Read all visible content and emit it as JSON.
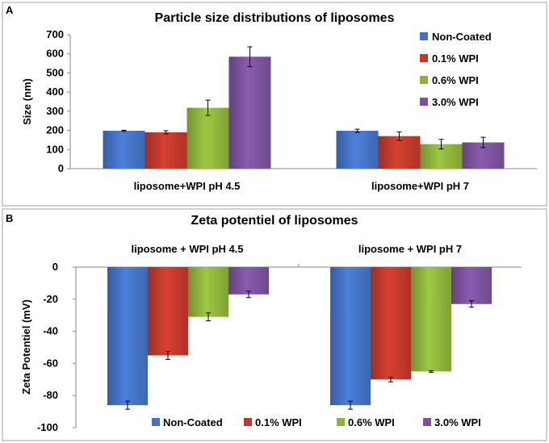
{
  "colors": {
    "non_coated": "#4472C4",
    "wpi_01": "#C0392B",
    "wpi_06": "#8DB33A",
    "wpi_30": "#7B519D"
  },
  "chart_data": [
    {
      "panel": "A",
      "type": "bar",
      "title": "Particle size distributions of liposomes",
      "xlabel": "",
      "ylabel": "Size (nm)",
      "ylim": [
        0,
        700
      ],
      "yticks": [
        0,
        100,
        200,
        300,
        400,
        500,
        600,
        700
      ],
      "categories": [
        "liposome+WPI pH 4.5",
        "liposome+WPI pH 7"
      ],
      "legend_position": "top-right",
      "series": [
        {
          "name": "Non-Coated",
          "values": [
            198,
            198
          ],
          "errors": [
            3,
            8
          ]
        },
        {
          "name": "0.1% WPI",
          "values": [
            190,
            170
          ],
          "errors": [
            8,
            22
          ]
        },
        {
          "name": "0.6% WPI",
          "values": [
            318,
            128
          ],
          "errors": [
            40,
            25
          ]
        },
        {
          "name": "3.0% WPI",
          "values": [
            585,
            137
          ],
          "errors": [
            52,
            27
          ]
        }
      ]
    },
    {
      "panel": "B",
      "type": "bar",
      "title": "Zeta potentiel of liposomes",
      "xlabel": "",
      "ylabel": "Zeta Potentiel  (mV)",
      "ylim": [
        -100,
        0
      ],
      "yticks": [
        0,
        -20,
        -40,
        -60,
        -80,
        -100
      ],
      "categories": [
        "liposome + WPI pH 4.5",
        "liposome + WPI pH 7"
      ],
      "legend_position": "bottom",
      "series": [
        {
          "name": "Non-Coated",
          "values": [
            -86,
            -86
          ],
          "errors": [
            2.5,
            2.5
          ]
        },
        {
          "name": "0.1% WPI",
          "values": [
            -55,
            -70
          ],
          "errors": [
            2.5,
            1.5
          ]
        },
        {
          "name": "0.6% WPI",
          "values": [
            -31,
            -65
          ],
          "errors": [
            2.5,
            0.5
          ]
        },
        {
          "name": "3.0% WPI",
          "values": [
            -17,
            -23
          ],
          "errors": [
            2,
            2
          ]
        }
      ]
    }
  ]
}
